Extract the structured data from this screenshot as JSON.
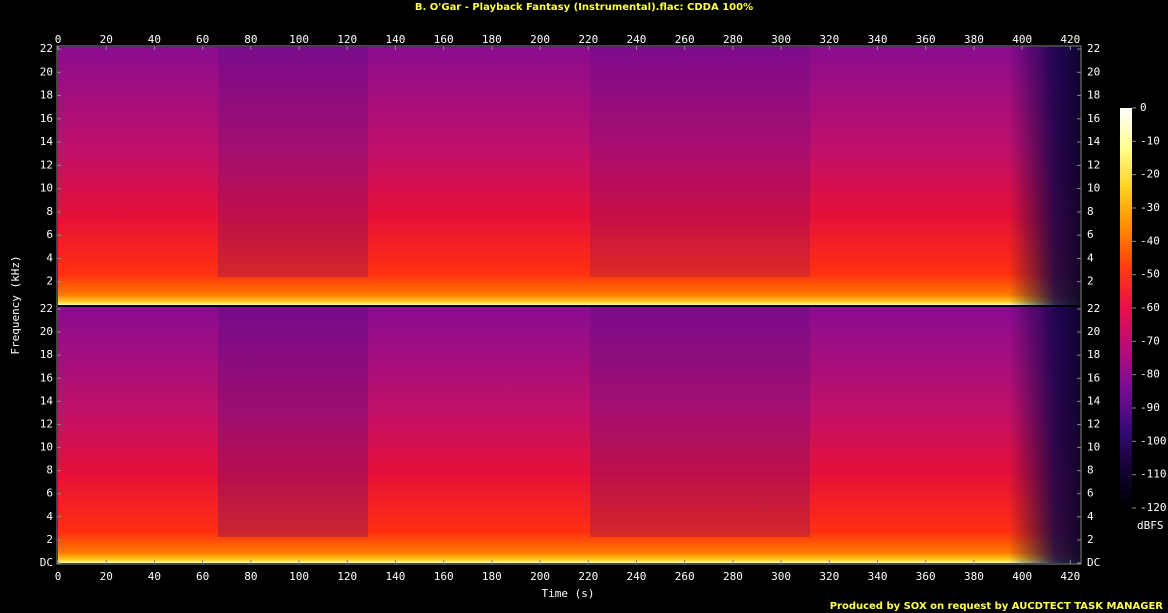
{
  "title": "B. O'Gar - Playback Fantasy (Instrumental).flac: CDDA 100%",
  "footer": "Produced by SOX on request by AUCDTECT TASK MANAGER",
  "chart_data": {
    "type": "spectrogram",
    "xlabel": "Time (s)",
    "ylabel": "Frequency (kHz)",
    "xlim": [
      0,
      424
    ],
    "xticks": [
      0,
      20,
      40,
      60,
      80,
      100,
      120,
      140,
      160,
      180,
      200,
      220,
      240,
      260,
      280,
      300,
      320,
      340,
      360,
      380,
      400,
      420
    ],
    "panels": [
      {
        "ylim": [
          0,
          22
        ],
        "yticks": [
          2,
          4,
          6,
          8,
          10,
          12,
          14,
          16,
          18,
          20,
          22
        ]
      },
      {
        "ylim": [
          0,
          22
        ],
        "yticks": [
          {
            "value": 0,
            "label": "DC"
          },
          2,
          4,
          6,
          8,
          10,
          12,
          14,
          16,
          18,
          20,
          22
        ]
      }
    ],
    "zlabel": "dBFS",
    "zlim": [
      -120,
      0
    ],
    "zticks": [
      0,
      -10,
      -20,
      -30,
      -40,
      -50,
      -60,
      -70,
      -80,
      -90,
      -100,
      -110,
      -120
    ],
    "colormap": [
      "#ffffff",
      "#ffff90",
      "#ffd020",
      "#ff8a00",
      "#ff3a10",
      "#e8104a",
      "#b80c78",
      "#7a0c96",
      "#3a0a7a",
      "#120334",
      "#000000"
    ]
  }
}
